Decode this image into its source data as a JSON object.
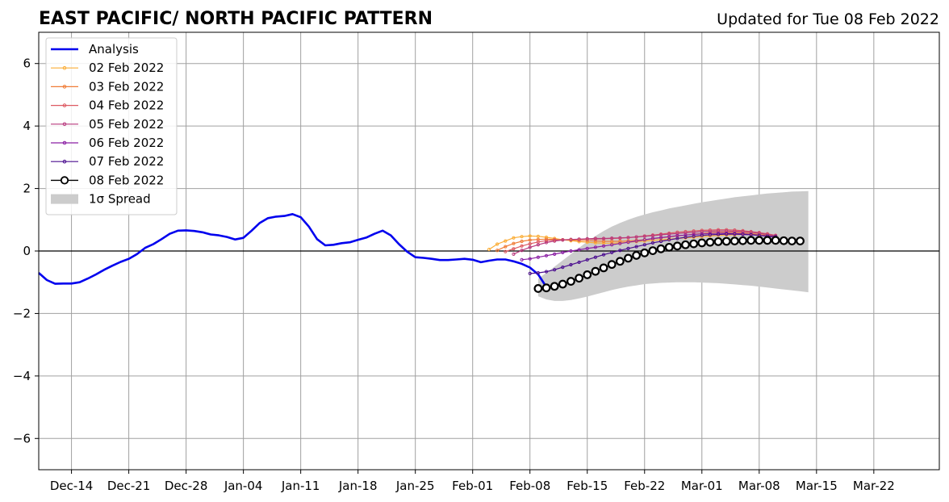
{
  "chart_data": {
    "type": "line",
    "title": "EAST PACIFIC/ NORTH PACIFIC PATTERN",
    "subtitle": "Updated for Tue 08 Feb 2022",
    "xlabel": "",
    "ylabel": "",
    "ylim": [
      -7,
      7
    ],
    "xlim": [
      "2021-12-10",
      "2022-03-30"
    ],
    "yticks": [
      -6,
      -4,
      -2,
      0,
      2,
      4,
      6
    ],
    "yticklabels": [
      "−6",
      "−4",
      "−2",
      "0",
      "2",
      "4",
      "6"
    ],
    "xticks": [
      "2021-12-14",
      "2021-12-21",
      "2021-12-28",
      "2022-01-04",
      "2022-01-11",
      "2022-01-18",
      "2022-01-25",
      "2022-02-01",
      "2022-02-08",
      "2022-02-15",
      "2022-02-22",
      "2022-03-01",
      "2022-03-08",
      "2022-03-15",
      "2022-03-22"
    ],
    "xticklabels": [
      "Dec-14",
      "Dec-21",
      "Dec-28",
      "Jan-04",
      "Jan-11",
      "Jan-18",
      "Jan-25",
      "Feb-01",
      "Feb-08",
      "Feb-15",
      "Feb-22",
      "Mar-01",
      "Mar-08",
      "Mar-15",
      "Mar-22"
    ],
    "grid": true,
    "legend_position": "top-left",
    "analysis": {
      "name": "Analysis",
      "color": "#0000ee",
      "start": "2021-12-10",
      "values": [
        -0.7,
        -0.93,
        -1.05,
        -1.04,
        -1.04,
        -1.0,
        -0.88,
        -0.75,
        -0.6,
        -0.47,
        -0.35,
        -0.25,
        -0.1,
        0.1,
        0.22,
        0.38,
        0.55,
        0.65,
        0.66,
        0.64,
        0.6,
        0.53,
        0.5,
        0.45,
        0.37,
        0.42,
        0.65,
        0.9,
        1.05,
        1.1,
        1.12,
        1.18,
        1.08,
        0.78,
        0.38,
        0.18,
        0.2,
        0.25,
        0.28,
        0.36,
        0.43,
        0.55,
        0.65,
        0.5,
        0.22,
        -0.02,
        -0.2,
        -0.22,
        -0.25,
        -0.29,
        -0.29,
        -0.27,
        -0.25,
        -0.28,
        -0.36,
        -0.31,
        -0.27,
        -0.27,
        -0.33,
        -0.41,
        -0.53,
        -0.75,
        -1.15
      ]
    },
    "forecasts": [
      {
        "name": "02 Feb 2022",
        "color": "#fbad36",
        "start": "2022-02-03",
        "values": [
          0.05,
          0.22,
          0.32,
          0.42,
          0.46,
          0.48,
          0.47,
          0.44,
          0.4,
          0.36,
          0.33,
          0.3,
          0.28,
          0.26,
          0.25,
          0.25,
          0.26,
          0.28,
          0.3,
          0.32,
          0.34,
          0.36,
          0.38,
          0.4,
          0.42,
          0.44,
          0.46,
          0.48,
          0.5,
          0.51,
          0.52,
          0.53,
          0.53,
          0.52,
          0.5,
          0.48
        ]
      },
      {
        "name": "03 Feb 2022",
        "color": "#f07d38",
        "start": "2022-02-04",
        "values": [
          0.02,
          0.14,
          0.24,
          0.31,
          0.35,
          0.37,
          0.38,
          0.37,
          0.36,
          0.35,
          0.34,
          0.33,
          0.32,
          0.31,
          0.31,
          0.31,
          0.32,
          0.34,
          0.36,
          0.39,
          0.42,
          0.45,
          0.48,
          0.51,
          0.54,
          0.56,
          0.58,
          0.6,
          0.6,
          0.6,
          0.58,
          0.56,
          0.53,
          0.5,
          0.46
        ]
      },
      {
        "name": "04 Feb 2022",
        "color": "#dd5a62",
        "start": "2022-02-05",
        "values": [
          -0.02,
          0.07,
          0.16,
          0.23,
          0.29,
          0.33,
          0.35,
          0.36,
          0.37,
          0.37,
          0.38,
          0.38,
          0.39,
          0.4,
          0.41,
          0.43,
          0.45,
          0.48,
          0.51,
          0.54,
          0.57,
          0.6,
          0.62,
          0.64,
          0.66,
          0.67,
          0.68,
          0.68,
          0.67,
          0.65,
          0.62,
          0.59,
          0.55,
          0.5
        ]
      },
      {
        "name": "05 Feb 2022",
        "color": "#b83a7e",
        "start": "2022-02-06",
        "values": [
          -0.1,
          0.02,
          0.12,
          0.2,
          0.27,
          0.32,
          0.35,
          0.37,
          0.38,
          0.39,
          0.4,
          0.4,
          0.41,
          0.42,
          0.43,
          0.45,
          0.47,
          0.49,
          0.52,
          0.54,
          0.56,
          0.58,
          0.6,
          0.62,
          0.63,
          0.64,
          0.64,
          0.63,
          0.62,
          0.6,
          0.57,
          0.53,
          0.49
        ]
      },
      {
        "name": "06 Feb 2022",
        "color": "#8a1fa3",
        "start": "2022-02-07",
        "values": [
          -0.28,
          -0.25,
          -0.2,
          -0.15,
          -0.1,
          -0.05,
          0.0,
          0.04,
          0.08,
          0.12,
          0.16,
          0.2,
          0.24,
          0.28,
          0.32,
          0.36,
          0.4,
          0.43,
          0.46,
          0.49,
          0.51,
          0.53,
          0.55,
          0.56,
          0.57,
          0.57,
          0.56,
          0.55,
          0.53,
          0.5,
          0.47,
          0.44
        ]
      },
      {
        "name": "07 Feb 2022",
        "color": "#4b0e8f",
        "start": "2022-02-08",
        "values": [
          -0.72,
          -0.7,
          -0.66,
          -0.6,
          -0.52,
          -0.44,
          -0.36,
          -0.28,
          -0.2,
          -0.12,
          -0.05,
          0.02,
          0.08,
          0.14,
          0.2,
          0.26,
          0.31,
          0.36,
          0.4,
          0.44,
          0.47,
          0.5,
          0.52,
          0.53,
          0.54,
          0.54,
          0.53,
          0.52,
          0.5,
          0.48,
          0.46
        ]
      },
      {
        "name": "08 Feb 2022",
        "color": "#000000",
        "start": "2022-02-09",
        "values": [
          -1.2,
          -1.18,
          -1.13,
          -1.06,
          -0.97,
          -0.87,
          -0.76,
          -0.65,
          -0.54,
          -0.43,
          -0.33,
          -0.23,
          -0.14,
          -0.06,
          0.01,
          0.07,
          0.12,
          0.16,
          0.2,
          0.23,
          0.26,
          0.28,
          0.3,
          0.31,
          0.32,
          0.33,
          0.34,
          0.34,
          0.34,
          0.34,
          0.33,
          0.32,
          0.32
        ]
      }
    ],
    "spread": {
      "name": "1σ Spread",
      "color": "#cccccc",
      "start": "2022-02-09",
      "upper": [
        -0.88,
        -0.7,
        -0.5,
        -0.3,
        -0.1,
        0.1,
        0.3,
        0.48,
        0.64,
        0.78,
        0.9,
        1.0,
        1.09,
        1.17,
        1.24,
        1.3,
        1.36,
        1.41,
        1.46,
        1.51,
        1.56,
        1.6,
        1.64,
        1.68,
        1.72,
        1.75,
        1.78,
        1.81,
        1.84,
        1.86,
        1.88,
        1.9,
        1.91,
        1.92
      ],
      "lower": [
        -1.45,
        -1.55,
        -1.6,
        -1.6,
        -1.57,
        -1.52,
        -1.46,
        -1.39,
        -1.32,
        -1.25,
        -1.19,
        -1.14,
        -1.1,
        -1.06,
        -1.04,
        -1.02,
        -1.01,
        -1.0,
        -1.0,
        -1.0,
        -1.01,
        -1.02,
        -1.03,
        -1.05,
        -1.07,
        -1.09,
        -1.11,
        -1.14,
        -1.17,
        -1.2,
        -1.23,
        -1.26,
        -1.29,
        -1.32
      ]
    },
    "legend": [
      {
        "label": "Analysis",
        "color": "#0000ee",
        "style": "thick-line"
      },
      {
        "label": "02 Feb 2022",
        "color": "#fbad36",
        "style": "line-dot"
      },
      {
        "label": "03 Feb 2022",
        "color": "#f07d38",
        "style": "line-dot"
      },
      {
        "label": "04 Feb 2022",
        "color": "#dd5a62",
        "style": "line-dot"
      },
      {
        "label": "05 Feb 2022",
        "color": "#b83a7e",
        "style": "line-dot"
      },
      {
        "label": "06 Feb 2022",
        "color": "#8a1fa3",
        "style": "line-dot"
      },
      {
        "label": "07 Feb 2022",
        "color": "#4b0e8f",
        "style": "line-dot"
      },
      {
        "label": "08 Feb 2022",
        "color": "#000000",
        "style": "line-circle"
      },
      {
        "label": "1σ Spread",
        "color": "#cccccc",
        "style": "patch"
      }
    ]
  }
}
